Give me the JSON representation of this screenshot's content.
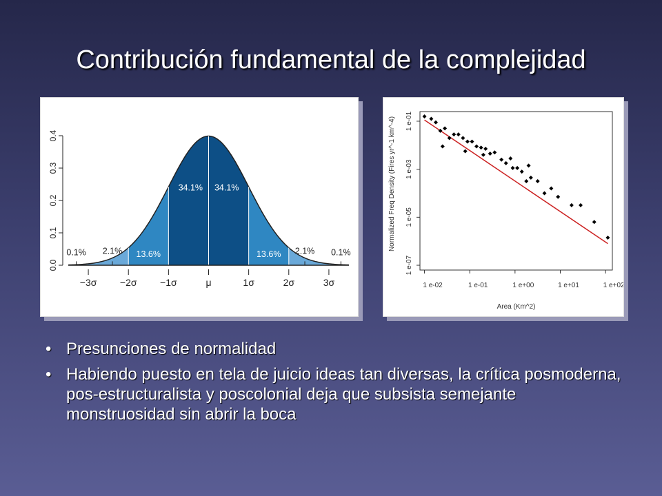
{
  "slide": {
    "title": "Contribución fundamental de la complejidad",
    "bullets": [
      "Presunciones de normalidad",
      "Habiendo puesto en tela de juicio ideas tan diversas, la crítica posmoderna, pos-estructuralista y poscolonial deja que subsista semejante monstruosidad sin abrir la boca"
    ],
    "bullet_glyph": "•"
  },
  "chart_data": [
    {
      "type": "area",
      "title": "",
      "xlabel": "",
      "ylabel": "",
      "x_tick_labels": [
        "−3σ",
        "−2σ",
        "−1σ",
        "μ",
        "1σ",
        "2σ",
        "3σ"
      ],
      "y_tick_labels": [
        "0.0",
        "0.1",
        "0.2",
        "0.3",
        "0.4"
      ],
      "ylim": [
        0,
        0.4
      ],
      "xlim": [
        -3.5,
        3.5
      ],
      "band_boundaries": [
        -3,
        -2,
        -1,
        0,
        1,
        2,
        3
      ],
      "region_labels": [
        {
          "text": "0.1%",
          "x": -3.3,
          "y": 0.02
        },
        {
          "text": "2.1%",
          "x": -2.4,
          "y": 0.025
        },
        {
          "text": "13.6%",
          "x": -1.5,
          "y": 0.015
        },
        {
          "text": "34.1%",
          "x": -0.45,
          "y": 0.22
        },
        {
          "text": "34.1%",
          "x": 0.45,
          "y": 0.22
        },
        {
          "text": "13.6%",
          "x": 1.5,
          "y": 0.015
        },
        {
          "text": "2.1%",
          "x": 2.4,
          "y": 0.025
        },
        {
          "text": "0.1%",
          "x": 3.3,
          "y": 0.02
        }
      ],
      "colors": {
        "inner": "#0d4f86",
        "middle": "#2f87c2",
        "outer": "#6aa9d9",
        "tail": "#9cc8ea"
      },
      "grid": false
    },
    {
      "type": "scatter",
      "title": "",
      "xlabel": "Area (Km^2)",
      "ylabel": "Normalized Freq Density (Fires yr^-1 km^-4)",
      "x_scale": "log",
      "y_scale": "log",
      "xlim_log10": [
        -2.1,
        2.15
      ],
      "ylim_log10": [
        -7.2,
        -0.6
      ],
      "x_ticks_log10": [
        -2,
        -1,
        0,
        1,
        2
      ],
      "x_tick_labels": [
        "1  e-02",
        "1  e-01",
        "1  e+00",
        "1  e+01",
        "1  e+02"
      ],
      "y_ticks_log10": [
        -7,
        -5,
        -3,
        -1
      ],
      "y_tick_labels": [
        "1  e-07",
        "1  e-05",
        "1  e-03",
        "1  e-01"
      ],
      "points_log10": [
        [
          -2.0,
          -0.8
        ],
        [
          -1.85,
          -0.9
        ],
        [
          -1.75,
          -1.05
        ],
        [
          -1.65,
          -1.4
        ],
        [
          -1.55,
          -1.3
        ],
        [
          -1.45,
          -1.7
        ],
        [
          -1.35,
          -1.55
        ],
        [
          -1.25,
          -1.55
        ],
        [
          -1.15,
          -1.7
        ],
        [
          -1.05,
          -1.85
        ],
        [
          -0.95,
          -1.85
        ],
        [
          -0.85,
          -2.05
        ],
        [
          -0.75,
          -2.1
        ],
        [
          -0.65,
          -2.15
        ],
        [
          -0.55,
          -2.35
        ],
        [
          -0.45,
          -2.3
        ],
        [
          -0.3,
          -2.6
        ],
        [
          -0.2,
          -2.75
        ],
        [
          -0.05,
          -2.95
        ],
        [
          0.05,
          -2.95
        ],
        [
          0.15,
          -3.1
        ],
        [
          0.25,
          -3.5
        ],
        [
          0.35,
          -3.35
        ],
        [
          0.5,
          -3.5
        ],
        [
          0.65,
          -4.0
        ],
        [
          0.8,
          -3.8
        ],
        [
          0.95,
          -4.15
        ],
        [
          1.25,
          -4.5
        ],
        [
          1.45,
          -4.5
        ],
        [
          1.75,
          -5.2
        ],
        [
          2.05,
          -5.85
        ],
        [
          -1.6,
          -2.05
        ],
        [
          -1.1,
          -2.25
        ],
        [
          -0.1,
          -2.55
        ],
        [
          -0.7,
          -2.4
        ],
        [
          0.3,
          -2.85
        ]
      ],
      "fit_line_log10": [
        [
          -2.0,
          -0.95
        ],
        [
          2.05,
          -6.1
        ]
      ],
      "colors": {
        "points": "#000000",
        "fit_line": "#cc2222"
      },
      "grid": false
    }
  ]
}
